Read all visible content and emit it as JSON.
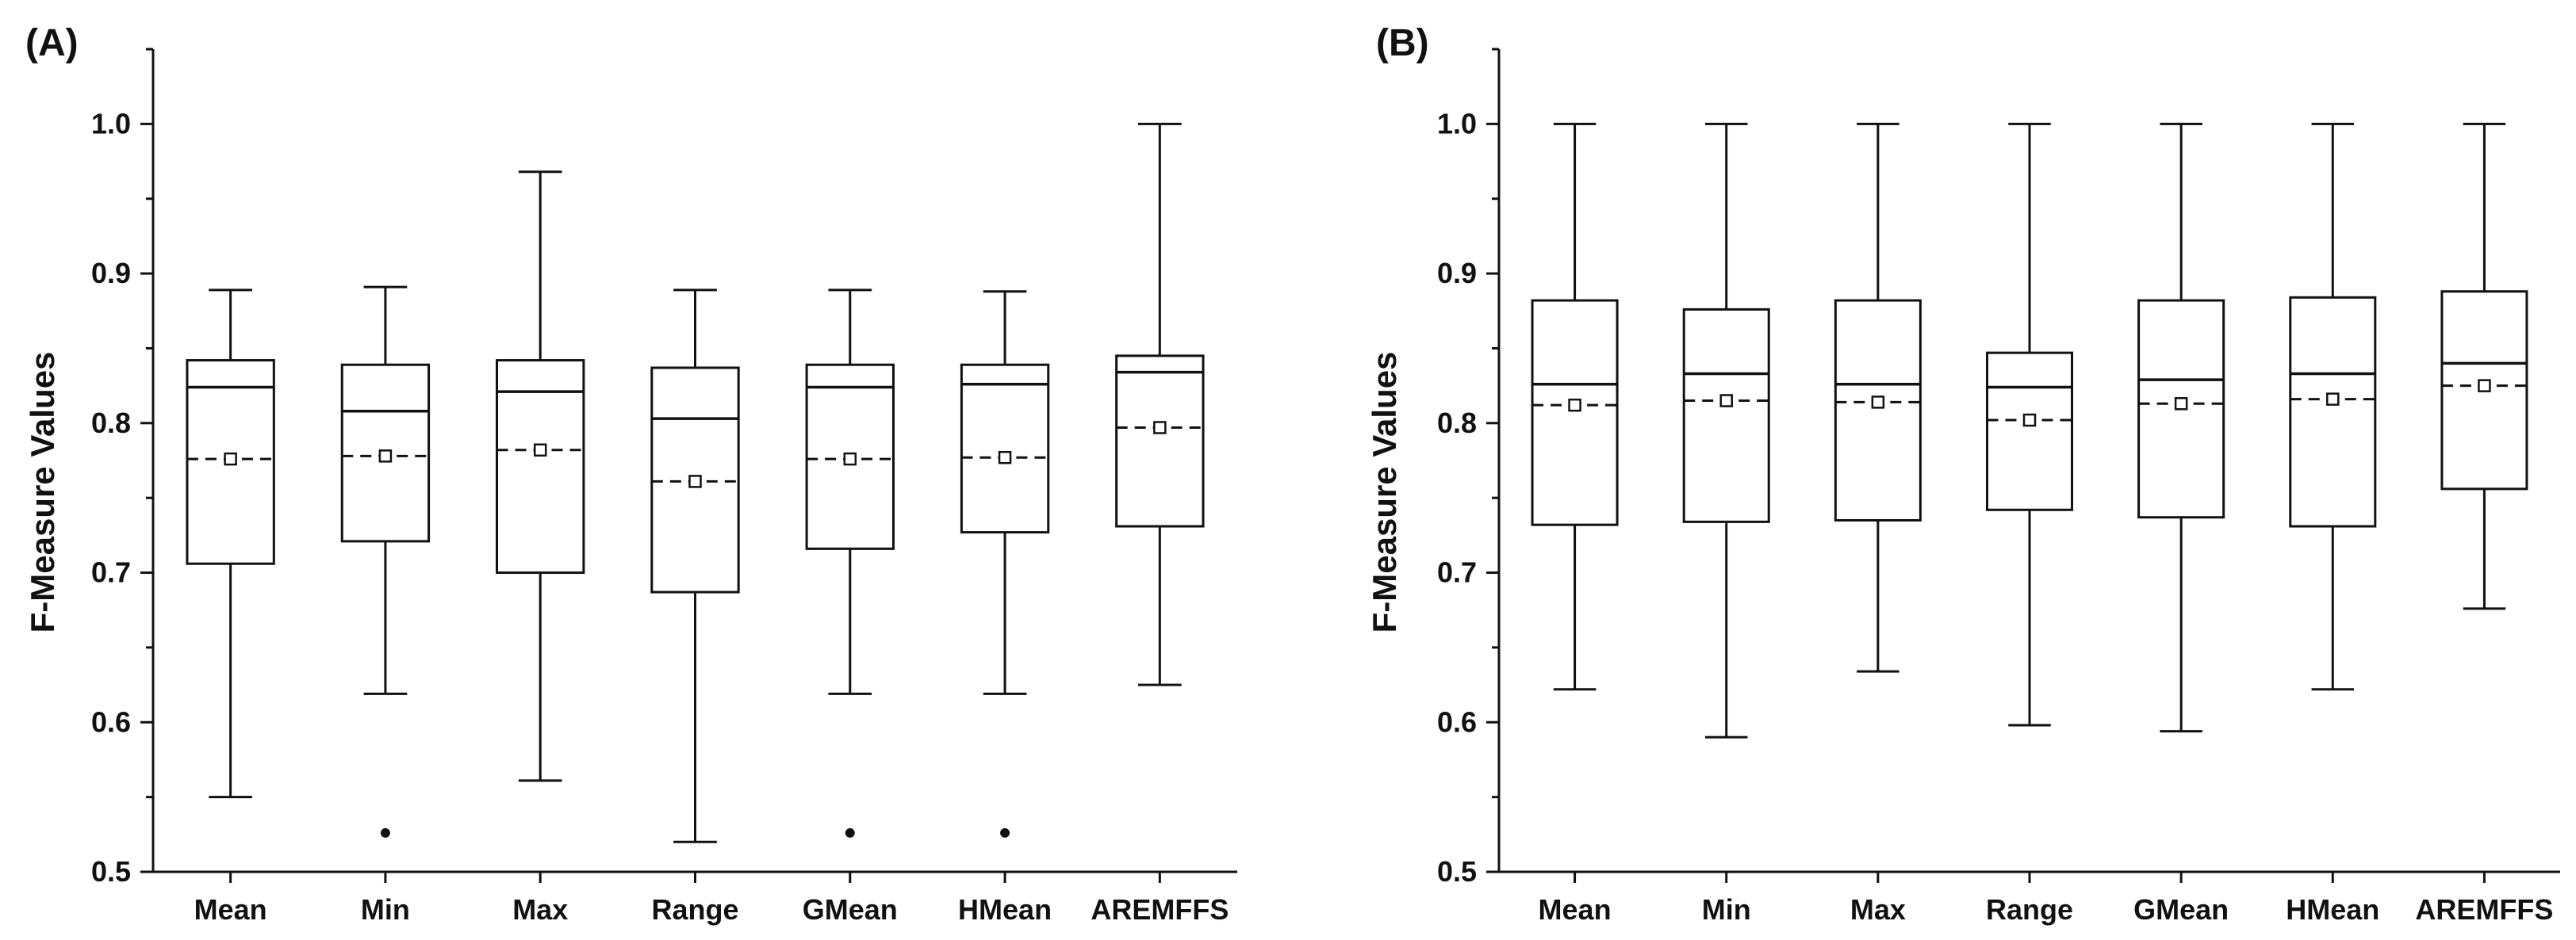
{
  "chart_data": [
    {
      "panel": "(A)",
      "type": "box",
      "ylabel": "F-Measure Values",
      "xlabel": "",
      "ylim": [
        0.5,
        1.05
      ],
      "yticks": [
        0.5,
        0.6,
        0.7,
        0.8,
        0.9,
        1.0
      ],
      "ytick_labels": [
        "0.5",
        "0.6",
        "0.7",
        "0.8",
        "0.9",
        "1.0"
      ],
      "categories": [
        "Mean",
        "Min",
        "Max",
        "Range",
        "GMean",
        "HMean",
        "AREMFFS"
      ],
      "boxes": [
        {
          "whisker_low": 0.55,
          "q1": 0.706,
          "median": 0.824,
          "q3": 0.842,
          "whisker_high": 0.889,
          "mean": 0.776,
          "outliers": []
        },
        {
          "whisker_low": 0.619,
          "q1": 0.721,
          "median": 0.808,
          "q3": 0.839,
          "whisker_high": 0.891,
          "mean": 0.778,
          "outliers": [
            0.526
          ]
        },
        {
          "whisker_low": 0.561,
          "q1": 0.7,
          "median": 0.821,
          "q3": 0.842,
          "whisker_high": 0.968,
          "mean": 0.782,
          "outliers": []
        },
        {
          "whisker_low": 0.52,
          "q1": 0.687,
          "median": 0.803,
          "q3": 0.837,
          "whisker_high": 0.889,
          "mean": 0.761,
          "outliers": []
        },
        {
          "whisker_low": 0.619,
          "q1": 0.716,
          "median": 0.824,
          "q3": 0.839,
          "whisker_high": 0.889,
          "mean": 0.776,
          "outliers": [
            0.526
          ]
        },
        {
          "whisker_low": 0.619,
          "q1": 0.727,
          "median": 0.826,
          "q3": 0.839,
          "whisker_high": 0.888,
          "mean": 0.777,
          "outliers": [
            0.526
          ]
        },
        {
          "whisker_low": 0.625,
          "q1": 0.731,
          "median": 0.834,
          "q3": 0.845,
          "whisker_high": 1.0,
          "mean": 0.797,
          "outliers": []
        }
      ]
    },
    {
      "panel": "(B)",
      "type": "box",
      "ylabel": "F-Measure Values",
      "xlabel": "",
      "ylim": [
        0.5,
        1.05
      ],
      "yticks": [
        0.5,
        0.6,
        0.7,
        0.8,
        0.9,
        1.0
      ],
      "ytick_labels": [
        "0.5",
        "0.6",
        "0.7",
        "0.8",
        "0.9",
        "1.0"
      ],
      "categories": [
        "Mean",
        "Min",
        "Max",
        "Range",
        "GMean",
        "HMean",
        "AREMFFS"
      ],
      "boxes": [
        {
          "whisker_low": 0.622,
          "q1": 0.732,
          "median": 0.826,
          "q3": 0.882,
          "whisker_high": 1.0,
          "mean": 0.812,
          "outliers": []
        },
        {
          "whisker_low": 0.59,
          "q1": 0.734,
          "median": 0.833,
          "q3": 0.876,
          "whisker_high": 1.0,
          "mean": 0.815,
          "outliers": []
        },
        {
          "whisker_low": 0.634,
          "q1": 0.735,
          "median": 0.826,
          "q3": 0.882,
          "whisker_high": 1.0,
          "mean": 0.814,
          "outliers": []
        },
        {
          "whisker_low": 0.598,
          "q1": 0.742,
          "median": 0.824,
          "q3": 0.847,
          "whisker_high": 1.0,
          "mean": 0.802,
          "outliers": []
        },
        {
          "whisker_low": 0.594,
          "q1": 0.737,
          "median": 0.829,
          "q3": 0.882,
          "whisker_high": 1.0,
          "mean": 0.813,
          "outliers": []
        },
        {
          "whisker_low": 0.622,
          "q1": 0.731,
          "median": 0.833,
          "q3": 0.884,
          "whisker_high": 1.0,
          "mean": 0.816,
          "outliers": []
        },
        {
          "whisker_low": 0.676,
          "q1": 0.756,
          "median": 0.84,
          "q3": 0.888,
          "whisker_high": 1.0,
          "mean": 0.825,
          "outliers": []
        }
      ]
    }
  ]
}
